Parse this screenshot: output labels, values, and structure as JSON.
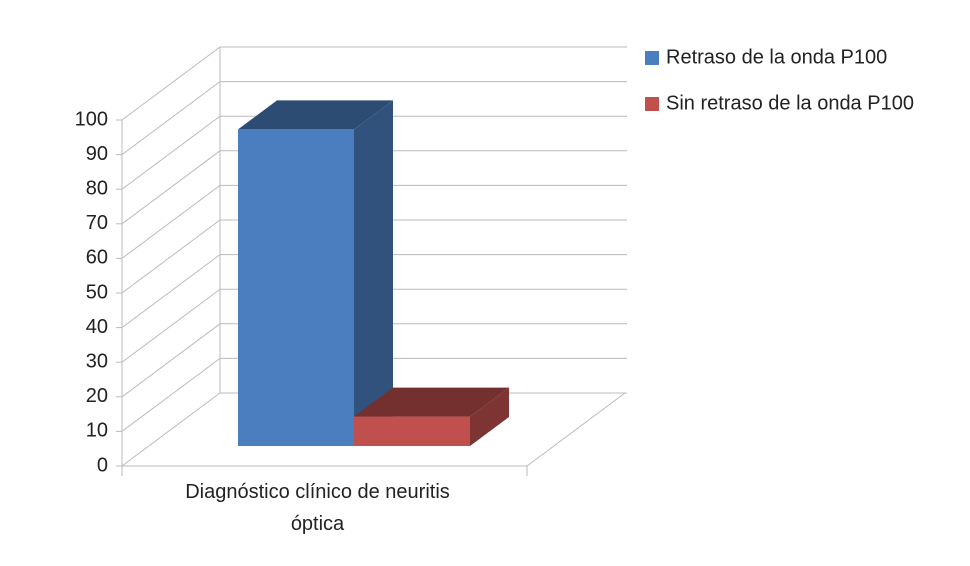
{
  "chart_data": {
    "type": "bar3d",
    "categories": [
      "Diagnóstico clínico de neuritis óptica"
    ],
    "series": [
      {
        "name": "Retraso de la onda P100",
        "color": "#4a7ebf",
        "values": [
          91.5
        ]
      },
      {
        "name": "Sin retraso de la onda P100",
        "color": "#c0504d",
        "values": [
          8.5
        ]
      }
    ],
    "ylim": [
      0,
      100
    ],
    "yticks": [
      0,
      10,
      20,
      30,
      40,
      50,
      60,
      70,
      80,
      90,
      100
    ],
    "grid": true,
    "legend": "right"
  }
}
